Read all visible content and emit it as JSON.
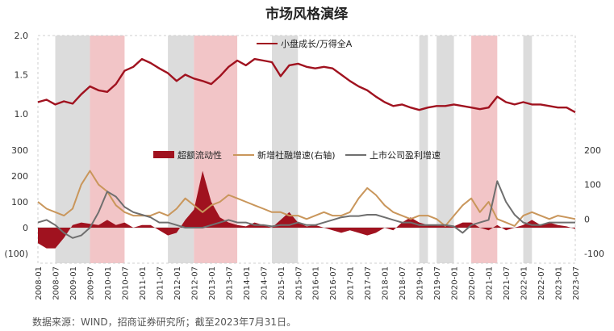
{
  "title": "市场风格演绎",
  "source": "数据来源：WIND，招商证券研究所；截至2023年7月31日。",
  "colors": {
    "dark_red": "#a0121f",
    "gold": "#c9965b",
    "gray": "#6f6f6f",
    "shade_gray": "#dcdcdc",
    "shade_pink": "#f2c5c7",
    "neg_label": "#c0392b"
  },
  "chart_data": [
    {
      "type": "line",
      "series": [
        {
          "name": "小盘成长/万得全A",
          "x": [
            "2008-01",
            "2008-04",
            "2008-07",
            "2008-10",
            "2009-01",
            "2009-04",
            "2009-07",
            "2009-10",
            "2010-01",
            "2010-04",
            "2010-07",
            "2010-10",
            "2011-01",
            "2011-04",
            "2011-07",
            "2011-10",
            "2012-01",
            "2012-04",
            "2012-07",
            "2012-10",
            "2013-01",
            "2013-04",
            "2013-07",
            "2013-10",
            "2014-01",
            "2014-04",
            "2014-07",
            "2014-10",
            "2015-01",
            "2015-04",
            "2015-07",
            "2015-10",
            "2016-01",
            "2016-04",
            "2016-07",
            "2016-10",
            "2017-01",
            "2017-04",
            "2017-07",
            "2017-10",
            "2018-01",
            "2018-04",
            "2018-07",
            "2018-10",
            "2019-01",
            "2019-04",
            "2019-07",
            "2019-10",
            "2020-01",
            "2020-04",
            "2020-07",
            "2020-10",
            "2021-01",
            "2021-04",
            "2021-07",
            "2021-10",
            "2022-01",
            "2022-04",
            "2022-07",
            "2022-10",
            "2023-01",
            "2023-04",
            "2023-07"
          ],
          "values": [
            1.15,
            1.18,
            1.12,
            1.16,
            1.13,
            1.25,
            1.35,
            1.3,
            1.28,
            1.38,
            1.55,
            1.6,
            1.7,
            1.65,
            1.58,
            1.52,
            1.42,
            1.5,
            1.45,
            1.42,
            1.38,
            1.48,
            1.6,
            1.68,
            1.62,
            1.7,
            1.68,
            1.66,
            1.48,
            1.62,
            1.64,
            1.6,
            1.58,
            1.6,
            1.58,
            1.5,
            1.42,
            1.35,
            1.3,
            1.22,
            1.15,
            1.1,
            1.12,
            1.08,
            1.05,
            1.08,
            1.1,
            1.1,
            1.12,
            1.1,
            1.08,
            1.06,
            1.08,
            1.22,
            1.15,
            1.12,
            1.15,
            1.12,
            1.12,
            1.1,
            1.08,
            1.08,
            1.02
          ]
        }
      ],
      "ylim": [
        1.0,
        2.0
      ],
      "yticks": [
        "1.0",
        "1.5",
        "2.0"
      ]
    },
    {
      "type": "line",
      "x": [
        "2008-01",
        "2008-04",
        "2008-07",
        "2008-10",
        "2009-01",
        "2009-04",
        "2009-07",
        "2009-10",
        "2010-01",
        "2010-04",
        "2010-07",
        "2010-10",
        "2011-01",
        "2011-04",
        "2011-07",
        "2011-10",
        "2012-01",
        "2012-04",
        "2012-07",
        "2012-10",
        "2013-01",
        "2013-04",
        "2013-07",
        "2013-10",
        "2014-01",
        "2014-04",
        "2014-07",
        "2014-10",
        "2015-01",
        "2015-04",
        "2015-07",
        "2015-10",
        "2016-01",
        "2016-04",
        "2016-07",
        "2016-10",
        "2017-01",
        "2017-04",
        "2017-07",
        "2017-10",
        "2018-01",
        "2018-04",
        "2018-07",
        "2018-10",
        "2019-01",
        "2019-04",
        "2019-07",
        "2019-10",
        "2020-01",
        "2020-04",
        "2020-07",
        "2020-10",
        "2021-01",
        "2021-04",
        "2021-07",
        "2021-10",
        "2022-01",
        "2022-04",
        "2022-07",
        "2022-10",
        "2023-01",
        "2023-04",
        "2023-07"
      ],
      "series": [
        {
          "name": "超额流动性",
          "type": "area",
          "axis": "left",
          "values": [
            -60,
            -80,
            -80,
            -40,
            10,
            20,
            15,
            10,
            30,
            10,
            20,
            0,
            10,
            10,
            -10,
            -30,
            -20,
            30,
            70,
            220,
            100,
            40,
            20,
            10,
            5,
            20,
            10,
            0,
            30,
            60,
            20,
            5,
            10,
            0,
            -10,
            -20,
            -10,
            -20,
            -30,
            -20,
            0,
            -10,
            20,
            40,
            20,
            10,
            10,
            10,
            5,
            20,
            20,
            0,
            -10,
            10,
            -10,
            0,
            10,
            30,
            10,
            20,
            10,
            5,
            -5
          ]
        },
        {
          "name": "新增社融增速(右轴)",
          "axis": "right",
          "values": [
            50,
            30,
            20,
            10,
            30,
            100,
            140,
            100,
            80,
            40,
            20,
            10,
            10,
            10,
            20,
            10,
            30,
            60,
            40,
            20,
            40,
            50,
            70,
            60,
            50,
            40,
            30,
            20,
            20,
            10,
            10,
            0,
            10,
            20,
            10,
            10,
            20,
            60,
            90,
            70,
            40,
            20,
            10,
            0,
            10,
            10,
            0,
            -20,
            10,
            40,
            60,
            20,
            50,
            0,
            -10,
            -20,
            10,
            20,
            10,
            0,
            10,
            5,
            0
          ]
        },
        {
          "name": "上市公司盈利增速",
          "axis": "left",
          "values": [
            20,
            30,
            10,
            -20,
            -40,
            -30,
            0,
            60,
            140,
            120,
            80,
            60,
            50,
            40,
            20,
            20,
            10,
            0,
            0,
            0,
            10,
            20,
            30,
            20,
            20,
            10,
            10,
            5,
            10,
            10,
            20,
            10,
            10,
            20,
            30,
            40,
            45,
            45,
            50,
            50,
            40,
            30,
            20,
            20,
            10,
            10,
            10,
            10,
            5,
            -20,
            10,
            20,
            30,
            180,
            100,
            50,
            20,
            10,
            10,
            20,
            20,
            20,
            20
          ]
        }
      ],
      "ylim_left": [
        -100,
        300
      ],
      "yticks_left": [
        "(100)",
        "0",
        "100",
        "200",
        "300"
      ],
      "ylim_right": [
        -100,
        200
      ],
      "yticks_right": [
        "-100",
        "0",
        "100",
        "200"
      ],
      "xticks": [
        "2008-01",
        "2008-07",
        "2009-01",
        "2009-07",
        "2010-01",
        "2010-07",
        "2011-01",
        "2011-07",
        "2012-01",
        "2012-07",
        "2013-01",
        "2013-07",
        "2014-01",
        "2014-07",
        "2015-01",
        "2015-07",
        "2016-01",
        "2016-07",
        "2017-01",
        "2017-07",
        "2018-01",
        "2018-07",
        "2019-01",
        "2019-07",
        "2020-01",
        "2020-07",
        "2021-01",
        "2021-07",
        "2022-01",
        "2022-07",
        "2023-01",
        "2023-07"
      ],
      "shaded_periods": [
        {
          "from": "2008-07",
          "to": "2009-07",
          "color": "gray"
        },
        {
          "from": "2009-07",
          "to": "2010-07",
          "color": "pink"
        },
        {
          "from": "2011-10",
          "to": "2012-07",
          "color": "gray"
        },
        {
          "from": "2012-07",
          "to": "2013-10",
          "color": "pink"
        },
        {
          "from": "2014-10",
          "to": "2015-07",
          "color": "gray"
        },
        {
          "from": "2019-01",
          "to": "2019-04",
          "color": "gray"
        },
        {
          "from": "2019-07",
          "to": "2020-01",
          "color": "gray"
        },
        {
          "from": "2020-07",
          "to": "2021-04",
          "color": "pink"
        },
        {
          "from": "2022-01",
          "to": "2022-04",
          "color": "gray"
        }
      ]
    }
  ]
}
